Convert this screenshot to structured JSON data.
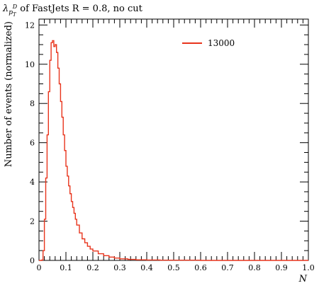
{
  "chart_data": {
    "type": "line",
    "title": {
      "lambda": "λ",
      "sub_main": "p",
      "sub_sub": "T",
      "sup": "D",
      "rest": " of FastJets R = 0.8, no cut"
    },
    "xlabel": "N",
    "ylabel": "Number of events (normalized)",
    "xlim": [
      0,
      1.0
    ],
    "ylim": [
      0,
      12.3
    ],
    "x_ticks": [
      0,
      0.1,
      0.2,
      0.3,
      0.4,
      0.5,
      0.6,
      0.7,
      0.8,
      0.9,
      1.0
    ],
    "x_tick_labels": [
      "0",
      "0.1",
      "0.2",
      "0.3",
      "0.4",
      "0.5",
      "0.6",
      "0.7",
      "0.8",
      "0.9",
      "1.0"
    ],
    "y_ticks": [
      0,
      2,
      4,
      6,
      8,
      10,
      12
    ],
    "y_tick_labels": [
      "0",
      "2",
      "4",
      "6",
      "8",
      "10",
      "12"
    ],
    "legend_position": "top-right",
    "series": [
      {
        "name": "13000",
        "color": "#e8341c",
        "step": true,
        "x": [
          0.0,
          0.005,
          0.01,
          0.015,
          0.02,
          0.025,
          0.03,
          0.035,
          0.04,
          0.045,
          0.05,
          0.055,
          0.06,
          0.065,
          0.07,
          0.075,
          0.08,
          0.085,
          0.09,
          0.095,
          0.1,
          0.105,
          0.11,
          0.115,
          0.12,
          0.125,
          0.13,
          0.135,
          0.14,
          0.15,
          0.16,
          0.17,
          0.18,
          0.19,
          0.2,
          0.22,
          0.24,
          0.26,
          0.28,
          0.3,
          0.33,
          0.36,
          0.4,
          0.45,
          0.5,
          0.6,
          0.7,
          0.8,
          0.9,
          0.995
        ],
        "y": [
          0.0,
          0.0,
          0.02,
          0.5,
          2.1,
          4.2,
          6.4,
          8.6,
          10.2,
          11.1,
          11.2,
          10.9,
          11.0,
          10.6,
          9.8,
          9.0,
          8.1,
          7.3,
          6.4,
          5.6,
          4.8,
          4.3,
          3.8,
          3.4,
          3.0,
          2.7,
          2.4,
          2.1,
          1.8,
          1.4,
          1.1,
          0.9,
          0.72,
          0.58,
          0.48,
          0.34,
          0.24,
          0.17,
          0.12,
          0.08,
          0.05,
          0.03,
          0.02,
          0.01,
          0.01,
          0.0,
          0.0,
          0.0,
          0.0,
          0.0
        ]
      }
    ]
  }
}
